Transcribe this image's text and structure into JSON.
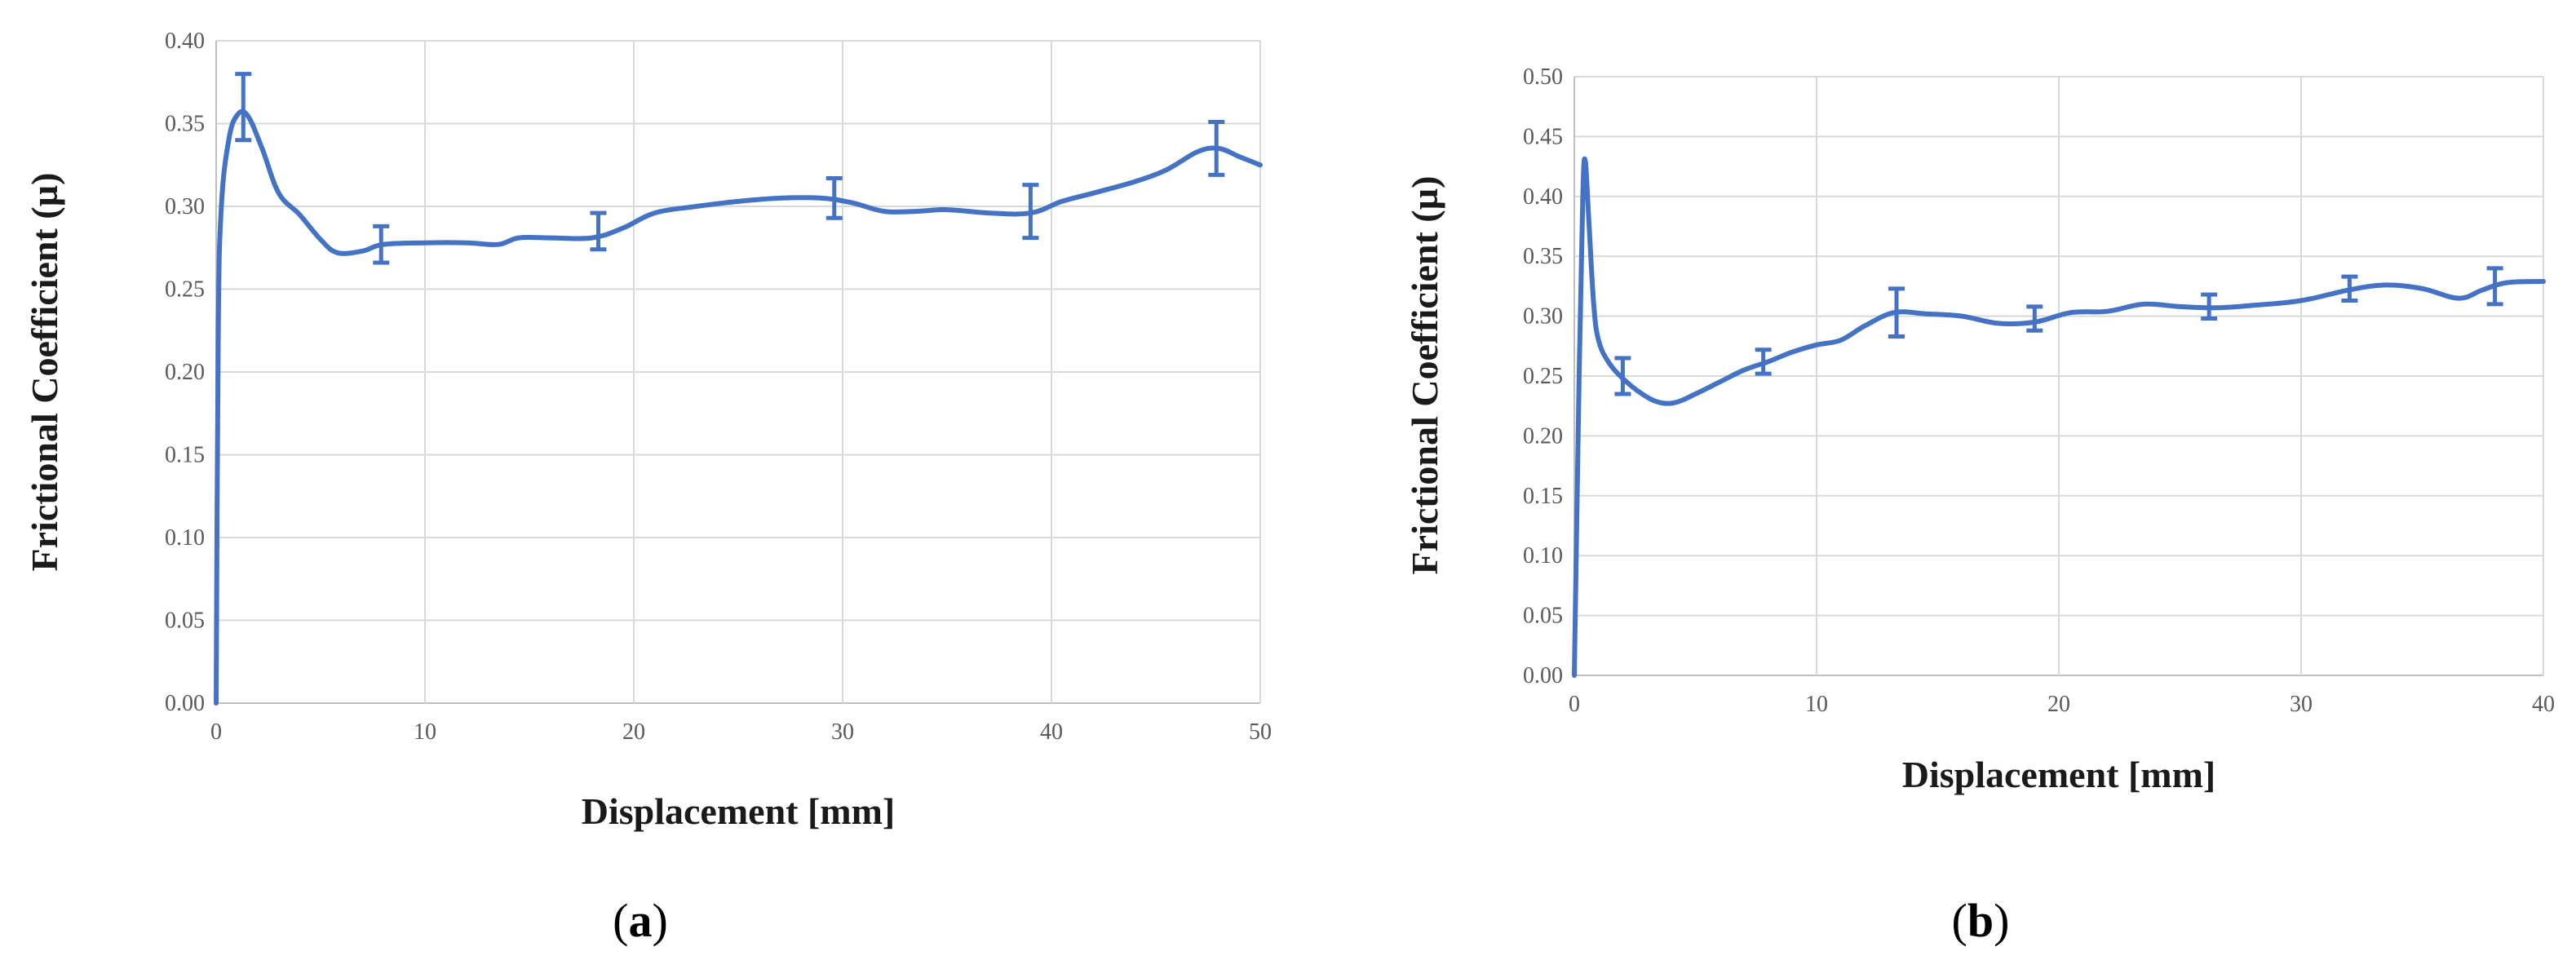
{
  "chart_data": [
    {
      "panel": "a",
      "type": "line",
      "xlabel": "Displacement [mm]",
      "ylabel": "Frictional Coefficient (µ)",
      "xlim": [
        0,
        50
      ],
      "ylim": [
        0,
        0.4
      ],
      "xticks": [
        "0",
        "10",
        "20",
        "30",
        "40",
        "50"
      ],
      "yticks": [
        "0.00",
        "0.05",
        "0.10",
        "0.15",
        "0.20",
        "0.25",
        "0.30",
        "0.35",
        "0.40"
      ],
      "grid": true,
      "line_color": "#4472c4",
      "series": [
        {
          "x": [
            0,
            0.1,
            0.25,
            0.6,
            1.0,
            1.5,
            2.2,
            3.0,
            4.0,
            5.0,
            5.8,
            7.0,
            8.0,
            10.0,
            12.0,
            13.5,
            14.5,
            16.0,
            18.0,
            19.5,
            21.0,
            23.0,
            25.0,
            27.0,
            29.0,
            30.5,
            32.0,
            33.5,
            35.0,
            37.0,
            39.0,
            40.5,
            42.0,
            44.0,
            45.5,
            47.0,
            48.0,
            49.0,
            50.0
          ],
          "y": [
            0.0,
            0.225,
            0.3,
            0.34,
            0.355,
            0.355,
            0.335,
            0.308,
            0.295,
            0.28,
            0.272,
            0.273,
            0.277,
            0.278,
            0.278,
            0.277,
            0.281,
            0.281,
            0.281,
            0.287,
            0.296,
            0.3,
            0.303,
            0.305,
            0.305,
            0.302,
            0.297,
            0.297,
            0.298,
            0.296,
            0.296,
            0.303,
            0.308,
            0.315,
            0.322,
            0.333,
            0.335,
            0.33,
            0.325
          ]
        }
      ],
      "error_bars": [
        {
          "x": 1.3,
          "y": 0.36,
          "err": 0.02
        },
        {
          "x": 7.9,
          "y": 0.277,
          "err": 0.011
        },
        {
          "x": 18.3,
          "y": 0.285,
          "err": 0.011
        },
        {
          "x": 29.6,
          "y": 0.305,
          "err": 0.012
        },
        {
          "x": 39.0,
          "y": 0.297,
          "err": 0.016
        },
        {
          "x": 47.9,
          "y": 0.335,
          "err": 0.016
        }
      ]
    },
    {
      "panel": "b",
      "type": "line",
      "xlabel": "Displacement [mm]",
      "ylabel": "Frictional Coefficient (µ)",
      "xlim": [
        0,
        40
      ],
      "ylim": [
        0,
        0.5
      ],
      "xticks": [
        "0",
        "10",
        "20",
        "30",
        "40"
      ],
      "yticks": [
        "0.00",
        "0.05",
        "0.10",
        "0.15",
        "0.20",
        "0.25",
        "0.30",
        "0.35",
        "0.40",
        "0.45",
        "0.50"
      ],
      "grid": true,
      "line_color": "#4472c4",
      "series": [
        {
          "x": [
            0,
            0.2,
            0.35,
            0.45,
            0.6,
            0.8,
            1.0,
            1.4,
            2.0,
            2.8,
            3.5,
            4.2,
            5.0,
            6.0,
            7.0,
            8.0,
            9.0,
            10.0,
            11.0,
            12.0,
            13.2,
            14.5,
            16.0,
            17.5,
            19.0,
            20.5,
            22.0,
            23.5,
            25.0,
            26.5,
            28.0,
            30.0,
            32.0,
            33.5,
            35.0,
            36.5,
            37.5,
            38.5,
            40.0
          ],
          "y": [
            0.0,
            0.25,
            0.4,
            0.43,
            0.38,
            0.31,
            0.28,
            0.262,
            0.248,
            0.235,
            0.228,
            0.228,
            0.235,
            0.245,
            0.255,
            0.262,
            0.27,
            0.276,
            0.28,
            0.292,
            0.303,
            0.302,
            0.3,
            0.294,
            0.295,
            0.303,
            0.304,
            0.31,
            0.308,
            0.307,
            0.309,
            0.313,
            0.322,
            0.326,
            0.323,
            0.315,
            0.322,
            0.328,
            0.329
          ]
        }
      ],
      "error_bars": [
        {
          "x": 2.0,
          "y": 0.25,
          "err": 0.015
        },
        {
          "x": 7.8,
          "y": 0.262,
          "err": 0.01
        },
        {
          "x": 13.3,
          "y": 0.303,
          "err": 0.02
        },
        {
          "x": 19.0,
          "y": 0.298,
          "err": 0.01
        },
        {
          "x": 26.2,
          "y": 0.308,
          "err": 0.01
        },
        {
          "x": 32.0,
          "y": 0.323,
          "err": 0.01
        },
        {
          "x": 38.0,
          "y": 0.325,
          "err": 0.015
        }
      ]
    }
  ],
  "captions": {
    "a": "a",
    "b": "b"
  }
}
